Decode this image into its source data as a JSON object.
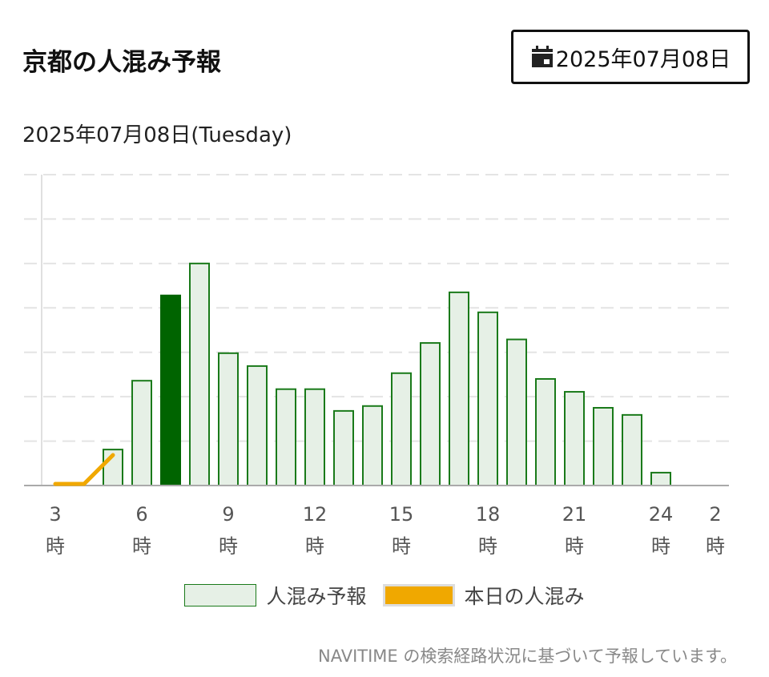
{
  "header": {
    "title": "京都の人混み予報",
    "date_button": "2025年07月08日"
  },
  "chart_data": {
    "type": "bar",
    "subtitle": "2025年07月08日(Tuesday)",
    "categories": [
      "3\n時",
      null,
      null,
      "6\n時",
      null,
      null,
      "9\n時",
      null,
      null,
      "12\n時",
      null,
      null,
      "15\n時",
      null,
      null,
      "18\n時",
      null,
      null,
      "21\n時",
      null,
      null,
      "24\n時",
      null,
      "2\n時"
    ],
    "series": [
      {
        "name": "人混み予報",
        "type": "bar",
        "color": "#e6f0e6",
        "edge_color": "#1a7a1a",
        "highlight": {
          "index": 4,
          "color": "#006400"
        },
        "values": [
          null,
          null,
          0.81,
          2.36,
          4.28,
          5.0,
          2.98,
          2.69,
          2.17,
          2.17,
          1.68,
          1.79,
          2.53,
          3.21,
          4.35,
          3.9,
          3.29,
          2.4,
          2.11,
          1.75,
          1.59,
          0.29,
          null,
          null
        ]
      },
      {
        "name": "本日の人混み",
        "type": "line",
        "color": "#f0a800",
        "values": [
          0,
          0,
          0.65,
          null,
          null,
          null,
          null,
          null,
          null,
          null,
          null,
          null,
          null,
          null,
          null,
          null,
          null,
          null,
          null,
          null,
          null,
          null,
          null,
          null
        ]
      }
    ],
    "ylim": [
      0,
      7
    ],
    "yticks": [
      0,
      1,
      2,
      3,
      4,
      5,
      6,
      7
    ],
    "grid": true,
    "note": "NAVITIME の検索経路状況に基づいて予報しています。"
  }
}
